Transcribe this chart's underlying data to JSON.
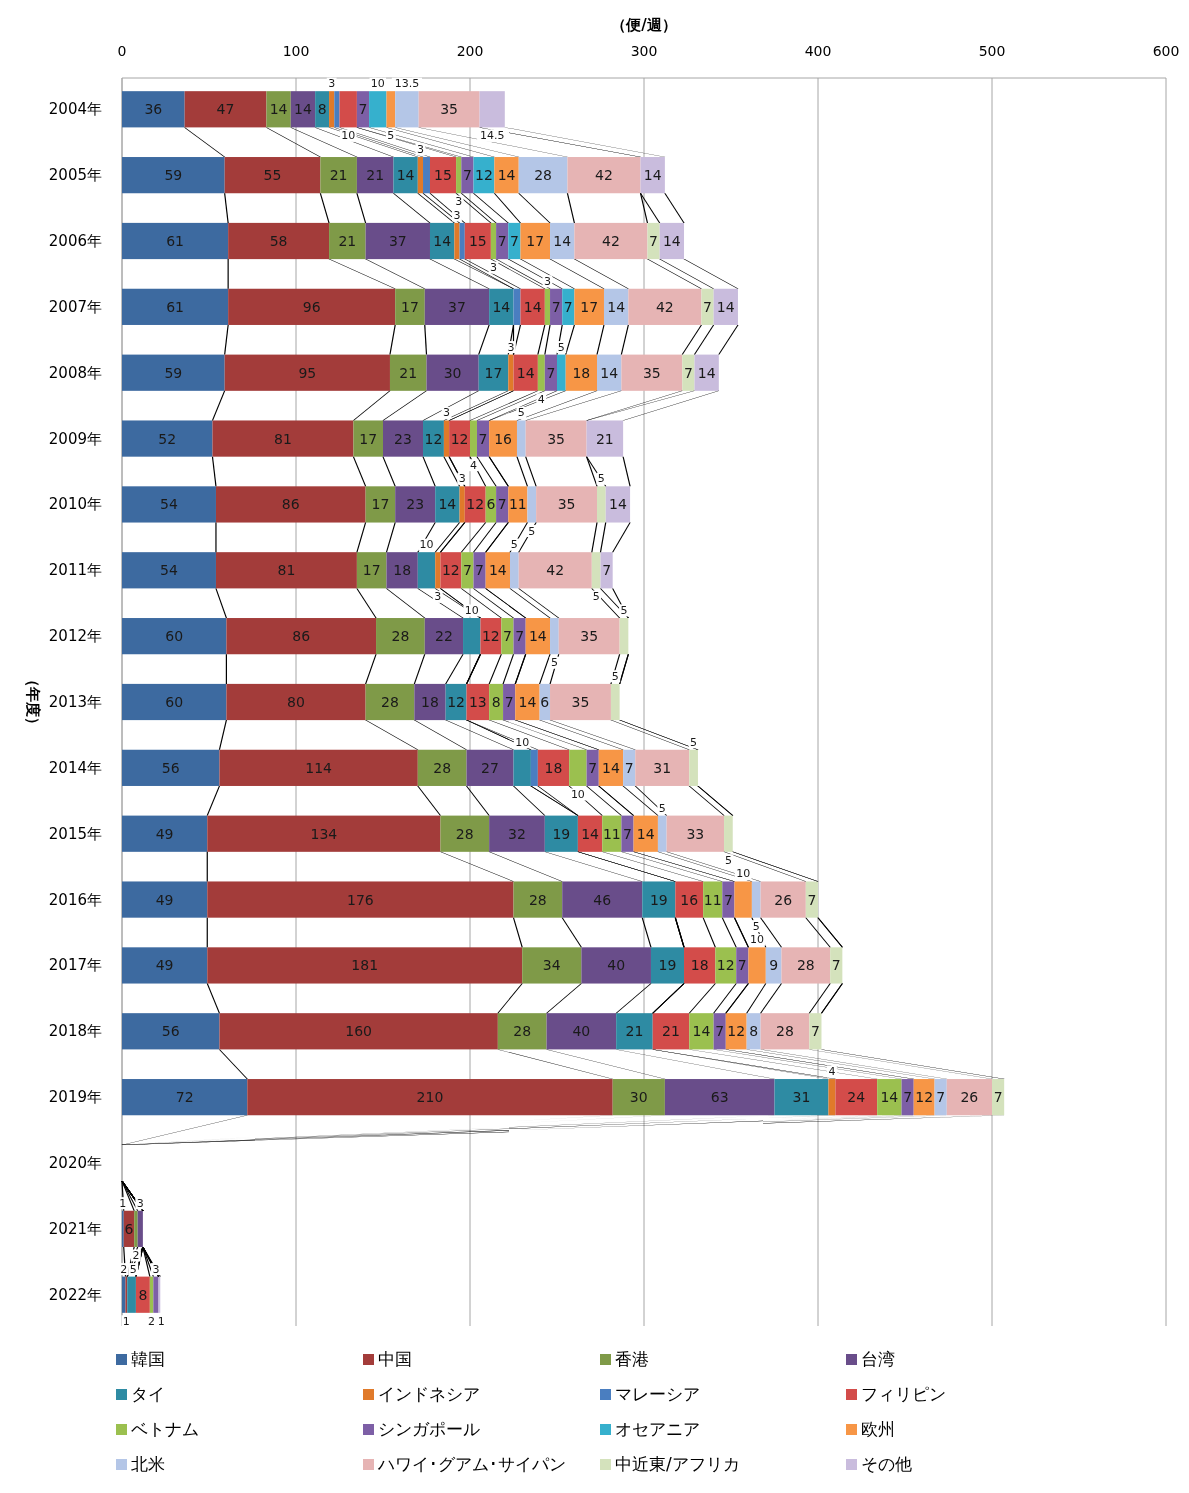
{
  "chart_data": {
    "type": "bar",
    "orientation": "horizontal",
    "stacked": true,
    "xlabel": "（便/週）",
    "ylabel": "（年度）",
    "categories": [
      "2004年",
      "2005年",
      "2006年",
      "2007年",
      "2008年",
      "2009年",
      "2010年",
      "2011年",
      "2012年",
      "2013年",
      "2014年",
      "2015年",
      "2016年",
      "2017年",
      "2018年",
      "2019年",
      "2020年",
      "2021年",
      "2022年"
    ],
    "xlim": [
      0,
      600
    ],
    "xticks": [
      0,
      100,
      200,
      300,
      400,
      500,
      600
    ],
    "grid": "x",
    "legend": "bottom",
    "series": [
      {
        "name": "韓国",
        "color": "#3d6aa0",
        "values": [
          36,
          59,
          61,
          61,
          59,
          52,
          54,
          54,
          60,
          60,
          56,
          49,
          49,
          49,
          56,
          72,
          0,
          1,
          2
        ],
        "value_labels": [
          "36",
          "59",
          "61",
          "61",
          "59",
          "52",
          "54",
          "54",
          "60",
          "60",
          "56",
          "49",
          "49",
          "49",
          "56",
          "72",
          null,
          "1",
          "2"
        ]
      },
      {
        "name": "中国",
        "color": "#a33c3a",
        "values": [
          47,
          55,
          58,
          96,
          95,
          81,
          86,
          81,
          86,
          80,
          114,
          134,
          176,
          181,
          160,
          210,
          0,
          6,
          1
        ],
        "value_labels": [
          "47",
          "55",
          "58",
          "96",
          "95",
          "81",
          "86",
          "81",
          "86",
          "80",
          "114",
          "134",
          "176",
          "181",
          "160",
          "210",
          null,
          "6",
          "1"
        ]
      },
      {
        "name": "香港",
        "color": "#7f9a48",
        "values": [
          14,
          21,
          21,
          17,
          21,
          17,
          17,
          17,
          28,
          28,
          28,
          28,
          28,
          34,
          28,
          30,
          0,
          2,
          0
        ],
        "value_labels": [
          "14",
          "21",
          "21",
          "17",
          "21",
          "17",
          "17",
          "17",
          "28",
          "28",
          "28",
          "28",
          "28",
          "34",
          "28",
          "30",
          null,
          "2",
          null
        ]
      },
      {
        "name": "台湾",
        "color": "#694d8a",
        "values": [
          14,
          21,
          37,
          37,
          30,
          23,
          23,
          18,
          22,
          18,
          27,
          32,
          46,
          40,
          40,
          63,
          0,
          3,
          0
        ],
        "value_labels": [
          "14",
          "21",
          "37",
          "37",
          "30",
          "23",
          "23",
          "18",
          "22",
          "18",
          "27",
          "32",
          "46",
          "40",
          "40",
          "63",
          null,
          "3",
          null
        ]
      },
      {
        "name": "タイ",
        "color": "#2e8ba3",
        "values": [
          8,
          14,
          14,
          14,
          17,
          12,
          14,
          10,
          10,
          12,
          10,
          19,
          19,
          19,
          21,
          31,
          0,
          0,
          5
        ],
        "value_labels": [
          "8",
          "14",
          "14",
          "14",
          "17",
          "12",
          "14",
          "10",
          "10",
          "12",
          "10",
          "19",
          "19",
          "19",
          "21",
          "31",
          null,
          null,
          "5"
        ]
      },
      {
        "name": "インドネシア",
        "color": "#e07a2a",
        "values": [
          3,
          3,
          3,
          0,
          3,
          3,
          3,
          3,
          0,
          0,
          0,
          0,
          0,
          0,
          0,
          4,
          0,
          0,
          0
        ],
        "value_labels": [
          "3",
          "3",
          "3",
          null,
          "3",
          "3",
          "3",
          "3",
          null,
          null,
          null,
          null,
          null,
          null,
          null,
          "4",
          null,
          null,
          null
        ]
      },
      {
        "name": "マレーシア",
        "color": "#4a7ec0",
        "values": [
          3,
          4,
          3,
          4,
          0,
          0,
          0,
          0,
          0,
          0,
          4,
          0,
          0,
          0,
          0,
          0,
          0,
          0,
          0
        ],
        "value_labels": [
          null,
          null,
          null,
          null,
          null,
          null,
          null,
          null,
          null,
          null,
          null,
          null,
          null,
          null,
          null,
          null,
          null,
          null,
          null
        ]
      },
      {
        "name": "フィリピン",
        "color": "#d34c4a",
        "values": [
          10,
          15,
          15,
          14,
          14,
          12,
          12,
          12,
          12,
          13,
          18,
          14,
          16,
          18,
          21,
          24,
          0,
          0,
          8
        ],
        "value_labels": [
          "10",
          "15",
          "15",
          "14",
          "14",
          "12",
          "12",
          "12",
          "12",
          "13",
          "18",
          "14",
          "16",
          "18",
          "21",
          "24",
          null,
          null,
          "8"
        ]
      },
      {
        "name": "ベトナム",
        "color": "#9bc04f",
        "values": [
          0,
          3,
          3,
          3,
          4,
          4,
          6,
          7,
          7,
          8,
          10,
          11,
          11,
          12,
          14,
          14,
          0,
          0,
          2
        ],
        "value_labels": [
          null,
          "3",
          "3",
          "3",
          "4",
          "4",
          "6",
          "7",
          "7",
          "8",
          "10",
          "11",
          "11",
          "12",
          "14",
          "14",
          null,
          null,
          "2"
        ]
      },
      {
        "name": "シンガポール",
        "color": "#7d5fa6",
        "values": [
          7,
          7,
          7,
          7,
          7,
          7,
          7,
          7,
          7,
          7,
          7,
          7,
          7,
          7,
          7,
          7,
          0,
          0,
          3
        ],
        "value_labels": [
          "7",
          "7",
          "7",
          "7",
          "7",
          "7",
          "7",
          "7",
          "7",
          "7",
          "7",
          "7",
          "7",
          "7",
          "7",
          "7",
          null,
          null,
          "3"
        ]
      },
      {
        "name": "オセアニア",
        "color": "#36b0cd",
        "values": [
          10,
          12,
          7,
          7,
          5,
          0,
          0,
          0,
          0,
          0,
          0,
          0,
          0,
          0,
          0,
          0,
          0,
          0,
          0
        ],
        "value_labels": [
          "10",
          "12",
          "7",
          "7",
          "5",
          null,
          null,
          null,
          null,
          null,
          null,
          null,
          null,
          null,
          null,
          null,
          null,
          null,
          null
        ]
      },
      {
        "name": "欧州",
        "color": "#f79646",
        "values": [
          5,
          14,
          17,
          17,
          18,
          16,
          11,
          14,
          14,
          14,
          14,
          14,
          10,
          10,
          12,
          12,
          0,
          0,
          0
        ],
        "value_labels": [
          "5",
          "14",
          "17",
          "17",
          "18",
          "16",
          "11",
          "14",
          "14",
          "14",
          "14",
          "14",
          "10",
          "10",
          "12",
          "12",
          null,
          null,
          null
        ]
      },
      {
        "name": "北米",
        "color": "#b4c6e7",
        "values": [
          13.5,
          28,
          14,
          14,
          14,
          5,
          5,
          5,
          5,
          6,
          7,
          5,
          5,
          9,
          8,
          7,
          0,
          0,
          0
        ],
        "value_labels": [
          "13.5",
          "28",
          "14",
          "14",
          "14",
          "5",
          "5",
          "5",
          "5",
          "6",
          "7",
          "5",
          "5",
          "9",
          "8",
          "7",
          null,
          null,
          null
        ]
      },
      {
        "name": "ハワイ･グアム･サイパン",
        "color": "#e6b4b4",
        "values": [
          35,
          42,
          42,
          42,
          35,
          35,
          35,
          42,
          35,
          35,
          31,
          33,
          26,
          28,
          28,
          26,
          0,
          0,
          0
        ],
        "value_labels": [
          "35",
          "42",
          "42",
          "42",
          "35",
          "35",
          "35",
          "42",
          "35",
          "35",
          "31",
          "33",
          "26",
          "28",
          "28",
          "26",
          null,
          null,
          null
        ]
      },
      {
        "name": "中近東/アフリカ",
        "color": "#d4e2bc",
        "values": [
          0,
          0,
          7,
          7,
          7,
          0,
          5,
          5,
          5,
          5,
          5,
          5,
          7,
          7,
          7,
          7,
          0,
          0,
          0
        ],
        "value_labels": [
          null,
          null,
          "7",
          "7",
          "7",
          null,
          "5",
          "5",
          "5",
          "5",
          "5",
          "5",
          "7",
          "7",
          "7",
          "7",
          null,
          null,
          null
        ]
      },
      {
        "name": "その他",
        "color": "#c9bcdd",
        "values": [
          14.5,
          14,
          14,
          14,
          14,
          21,
          14,
          7,
          0,
          0,
          0,
          0,
          0,
          0,
          0,
          0,
          0,
          0,
          1
        ],
        "value_labels": [
          "14.5",
          "14",
          "14",
          "14",
          "14",
          "21",
          "14",
          "7",
          null,
          null,
          null,
          null,
          null,
          null,
          null,
          null,
          null,
          null,
          "1"
        ]
      }
    ]
  }
}
